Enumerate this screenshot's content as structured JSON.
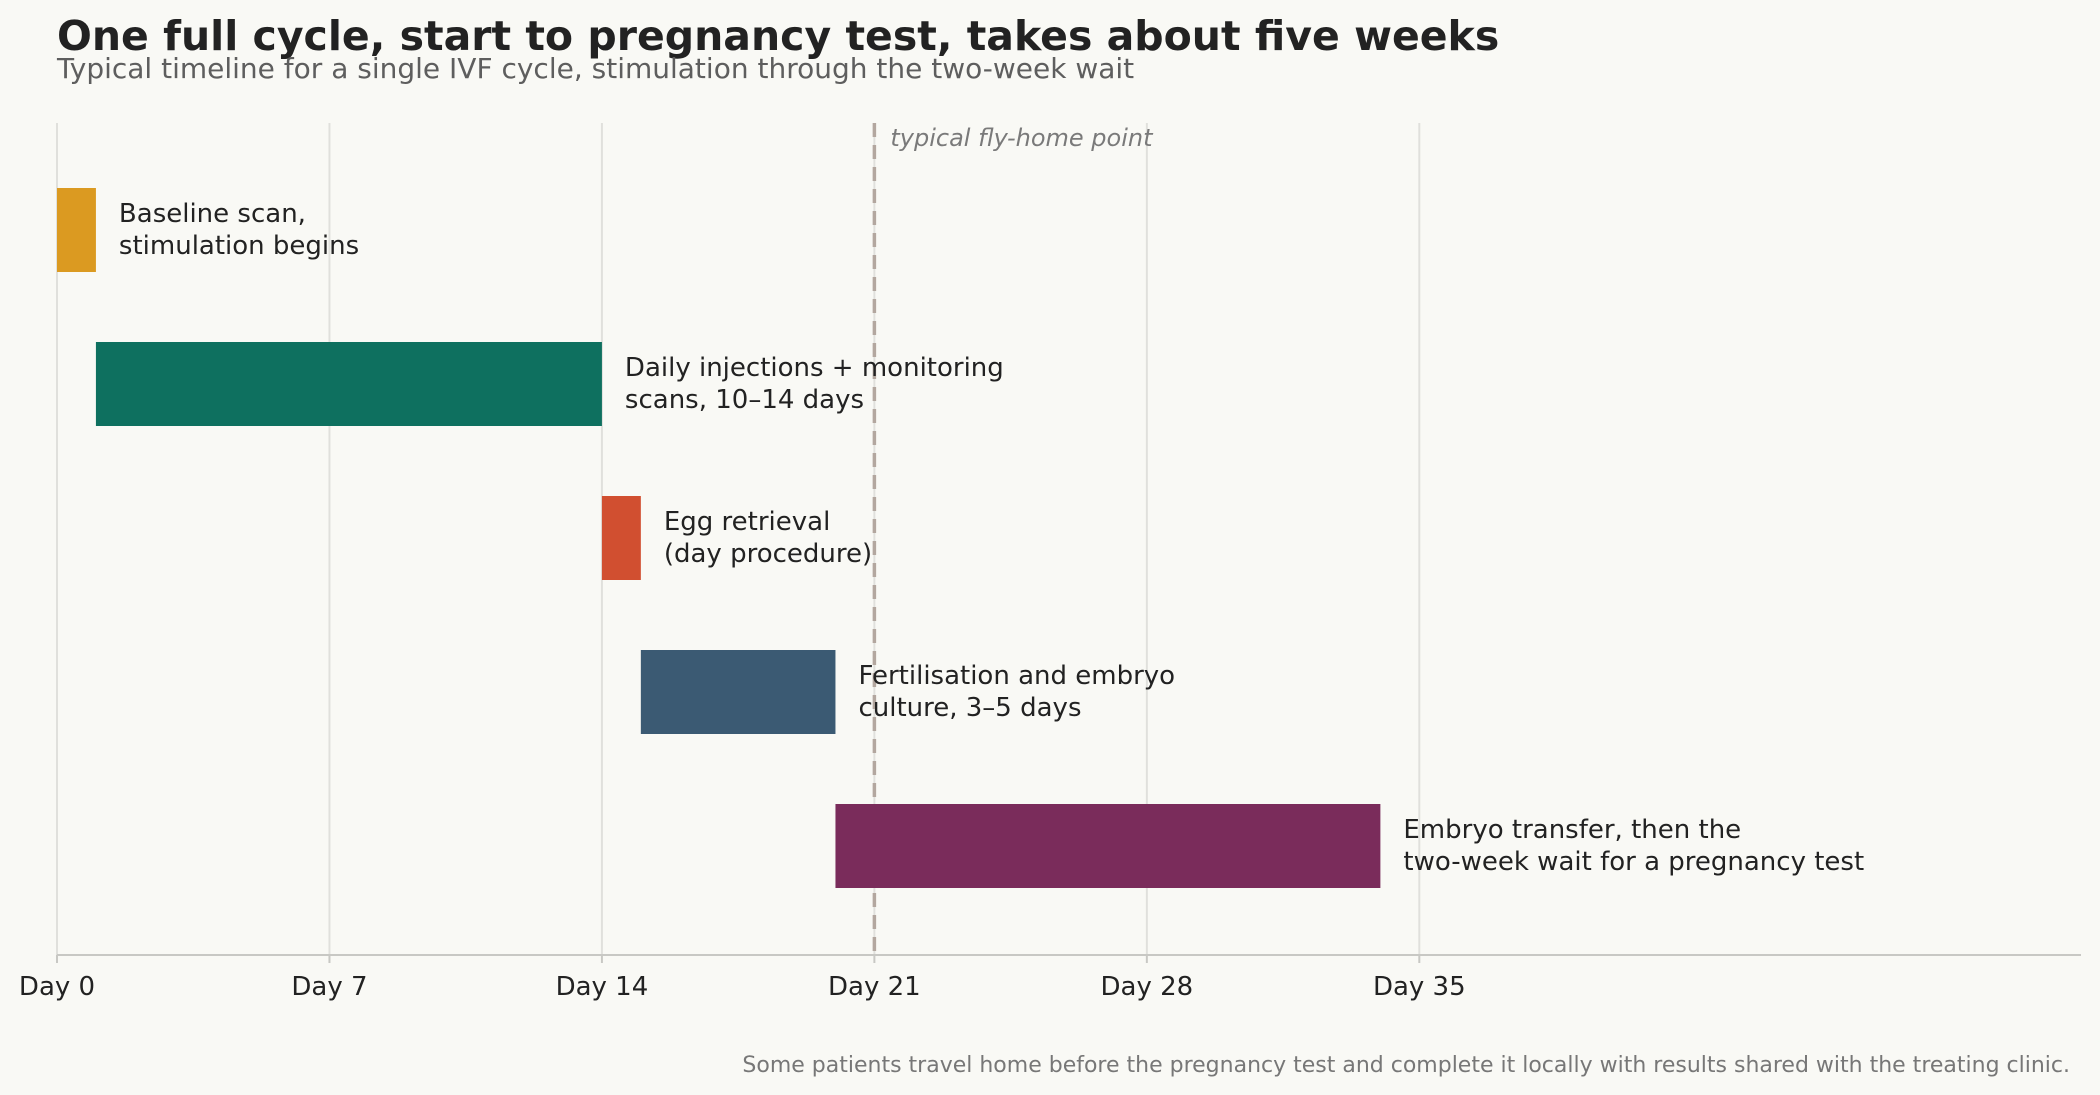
{
  "chart_data": {
    "type": "bar",
    "orientation": "horizontal-gantt",
    "title": "One full cycle, start to pregnancy test, takes about five weeks",
    "subtitle": "Typical timeline for a single IVF cycle, stimulation through the two-week wait",
    "x_ticks": [
      {
        "value": 0,
        "label": "Day 0"
      },
      {
        "value": 7,
        "label": "Day 7"
      },
      {
        "value": 14,
        "label": "Day 14"
      },
      {
        "value": 21,
        "label": "Day 21"
      },
      {
        "value": 28,
        "label": "Day 28"
      },
      {
        "value": 35,
        "label": "Day 35"
      }
    ],
    "xlim": [
      0,
      52
    ],
    "grid": "vertical",
    "tasks": [
      {
        "label": [
          "Baseline scan,",
          "stimulation begins"
        ],
        "start": 0,
        "end": 1,
        "color": "#db9a21"
      },
      {
        "label": [
          "Daily injections + monitoring",
          "scans, 10–14 days"
        ],
        "start": 1,
        "end": 14,
        "color": "#0e705f"
      },
      {
        "label": [
          "Egg retrieval",
          "(day procedure)"
        ],
        "start": 14,
        "end": 15,
        "color": "#d14f30"
      },
      {
        "label": [
          "Fertilisation and embryo",
          "culture, 3–5 days"
        ],
        "start": 15,
        "end": 20,
        "color": "#3b5a73"
      },
      {
        "label": [
          "Embryo transfer, then the",
          "two-week wait for a pregnancy test"
        ],
        "start": 20,
        "end": 34,
        "color": "#7a2c5b"
      }
    ],
    "reference_line": {
      "value": 21,
      "label": "typical fly-home point",
      "color": "#b3a79f"
    },
    "note": "Some patients travel home before the pregnancy test and complete it locally with results shared with the treating clinic."
  }
}
